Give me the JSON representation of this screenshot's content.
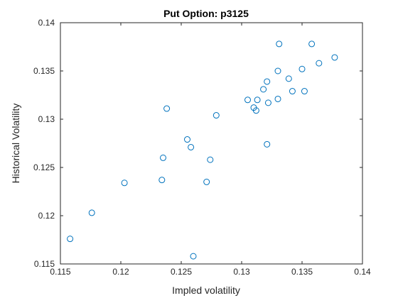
{
  "chart_data": {
    "type": "scatter",
    "title": "Put Option: p3125",
    "xlabel": "Impled volatility",
    "ylabel": "Historical Volatility",
    "xlim": [
      0.115,
      0.14
    ],
    "ylim": [
      0.115,
      0.14
    ],
    "xticks": [
      "0.115",
      "0.12",
      "0.125",
      "0.13",
      "0.135",
      "0.14"
    ],
    "yticks": [
      "0.115",
      "0.12",
      "0.125",
      "0.13",
      "0.135",
      "0.14"
    ],
    "grid": false,
    "marker": "open-circle",
    "marker_color": "#0072BD",
    "points": [
      {
        "x": 0.1158,
        "y": 0.1176
      },
      {
        "x": 0.1176,
        "y": 0.1203
      },
      {
        "x": 0.1203,
        "y": 0.1234
      },
      {
        "x": 0.1234,
        "y": 0.1237
      },
      {
        "x": 0.1235,
        "y": 0.126
      },
      {
        "x": 0.1238,
        "y": 0.1311
      },
      {
        "x": 0.1255,
        "y": 0.1279
      },
      {
        "x": 0.1258,
        "y": 0.1271
      },
      {
        "x": 0.126,
        "y": 0.1158
      },
      {
        "x": 0.1271,
        "y": 0.1235
      },
      {
        "x": 0.1274,
        "y": 0.1258
      },
      {
        "x": 0.1279,
        "y": 0.1304
      },
      {
        "x": 0.1305,
        "y": 0.132
      },
      {
        "x": 0.131,
        "y": 0.1312
      },
      {
        "x": 0.1312,
        "y": 0.1309
      },
      {
        "x": 0.1313,
        "y": 0.132
      },
      {
        "x": 0.1318,
        "y": 0.1331
      },
      {
        "x": 0.1321,
        "y": 0.1339
      },
      {
        "x": 0.1322,
        "y": 0.1317
      },
      {
        "x": 0.1321,
        "y": 0.1274
      },
      {
        "x": 0.133,
        "y": 0.1321
      },
      {
        "x": 0.133,
        "y": 0.135
      },
      {
        "x": 0.1331,
        "y": 0.1378
      },
      {
        "x": 0.1339,
        "y": 0.1342
      },
      {
        "x": 0.1342,
        "y": 0.1329
      },
      {
        "x": 0.135,
        "y": 0.1352
      },
      {
        "x": 0.1352,
        "y": 0.1329
      },
      {
        "x": 0.1358,
        "y": 0.1378
      },
      {
        "x": 0.1364,
        "y": 0.1358
      },
      {
        "x": 0.1377,
        "y": 0.1364
      }
    ]
  }
}
